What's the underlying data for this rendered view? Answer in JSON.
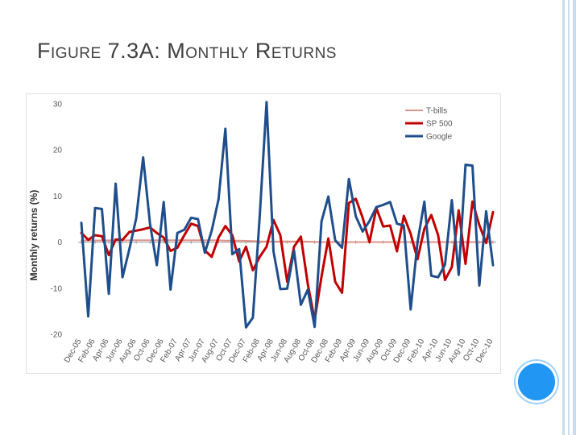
{
  "slide": {
    "title": "Figure 7.3A: Monthly Returns"
  },
  "colors": {
    "tbills": "#e0938a",
    "sp500": "#c00000",
    "google": "#1f4e8c",
    "deco": "#c9dcef",
    "button": "#2196f3"
  },
  "chart_data": {
    "type": "line",
    "title": "",
    "xlabel": "",
    "ylabel": "Monthly returns (%)",
    "ylim": [
      -20,
      30
    ],
    "yticks": [
      -20,
      -10,
      0,
      10,
      20,
      30
    ],
    "grid": false,
    "legend_position": "top-right",
    "tick_labels": [
      "Dec-05",
      "Feb-06",
      "Apr-06",
      "Jun-06",
      "Aug-06",
      "Oct-06",
      "Dec-06",
      "Feb-07",
      "Apr-07",
      "Jun-07",
      "Aug-07",
      "Oct-07",
      "Dec-07",
      "Feb-08",
      "Apr-08",
      "Jun-08",
      "Aug-08",
      "Oct-08",
      "Dec-08",
      "Feb-09",
      "Apr-09",
      "Jun-09",
      "Aug-09",
      "Oct-09",
      "Dec-09",
      "Feb-10",
      "Apr-10",
      "Jun-10",
      "Aug-10",
      "Oct-10",
      "Dec-10"
    ],
    "months": [
      "Dec-05",
      "Jan-06",
      "Feb-06",
      "Mar-06",
      "Apr-06",
      "May-06",
      "Jun-06",
      "Jul-06",
      "Aug-06",
      "Sep-06",
      "Oct-06",
      "Nov-06",
      "Dec-06",
      "Jan-07",
      "Feb-07",
      "Mar-07",
      "Apr-07",
      "May-07",
      "Jun-07",
      "Jul-07",
      "Aug-07",
      "Sep-07",
      "Oct-07",
      "Nov-07",
      "Dec-07",
      "Jan-08",
      "Feb-08",
      "Mar-08",
      "Apr-08",
      "May-08",
      "Jun-08",
      "Jul-08",
      "Aug-08",
      "Sep-08",
      "Oct-08",
      "Nov-08",
      "Dec-08",
      "Jan-09",
      "Feb-09",
      "Mar-09",
      "Apr-09",
      "May-09",
      "Jun-09",
      "Jul-09",
      "Aug-09",
      "Sep-09",
      "Oct-09",
      "Nov-09",
      "Dec-09",
      "Jan-10",
      "Feb-10",
      "Mar-10",
      "Apr-10",
      "May-10",
      "Jun-10",
      "Jul-10",
      "Aug-10",
      "Sep-10",
      "Oct-10",
      "Nov-10",
      "Dec-10"
    ],
    "series": [
      {
        "name": "T-bills",
        "color": "#e0938a",
        "width": 2,
        "values": [
          0.35,
          0.36,
          0.36,
          0.37,
          0.38,
          0.38,
          0.39,
          0.4,
          0.41,
          0.41,
          0.41,
          0.41,
          0.41,
          0.42,
          0.41,
          0.42,
          0.41,
          0.41,
          0.4,
          0.4,
          0.38,
          0.33,
          0.32,
          0.32,
          0.28,
          0.25,
          0.18,
          0.15,
          0.12,
          0.15,
          0.15,
          0.14,
          0.14,
          0.12,
          0.06,
          0.02,
          0.01,
          0.01,
          0.01,
          0.02,
          0.01,
          0.01,
          0.01,
          0.01,
          0.01,
          0.01,
          0.01,
          0.01,
          0.0,
          0.0,
          0.01,
          0.01,
          0.01,
          0.01,
          0.01,
          0.01,
          0.01,
          0.01,
          0.01,
          0.01,
          0.01
        ]
      },
      {
        "name": "SP 500",
        "color": "#c00000",
        "width": 3,
        "values": [
          2.0,
          0.5,
          1.5,
          1.3,
          -2.8,
          0.6,
          0.5,
          2.2,
          2.5,
          2.8,
          3.2,
          2.0,
          1.0,
          -1.9,
          -1.2,
          1.5,
          4.0,
          3.5,
          -1.8,
          -3.2,
          1.0,
          3.5,
          1.5,
          -4.2,
          -1.0,
          -6.1,
          -3.2,
          -1.0,
          4.8,
          1.5,
          -8.6,
          -1.0,
          1.2,
          -9.1,
          -16.9,
          -7.5,
          0.8,
          -8.6,
          -11.0,
          8.5,
          9.4,
          5.3,
          0.0,
          7.4,
          3.4,
          3.6,
          -2.0,
          5.7,
          1.8,
          -3.7,
          2.9,
          5.9,
          1.5,
          -8.2,
          -5.4,
          6.9,
          -4.7,
          8.8,
          3.7,
          -0.2,
          6.5
        ]
      },
      {
        "name": "Google",
        "color": "#1f4e8c",
        "width": 3,
        "values": [
          4.2,
          -16.1,
          7.4,
          7.2,
          -11.2,
          12.7,
          -7.6,
          -1.5,
          5.2,
          18.4,
          4.0,
          -5.0,
          8.7,
          -10.3,
          2.0,
          2.7,
          5.3,
          5.0,
          -2.3,
          2.5,
          9.3,
          24.6,
          -2.6,
          -1.5,
          -18.5,
          -16.4,
          5.6,
          30.4,
          -2.0,
          -10.2,
          -10.1,
          -1.8,
          -13.6,
          -10.3,
          -18.4,
          4.5,
          9.9,
          0.4,
          -1.2,
          13.7,
          5.6,
          2.3,
          4.6,
          7.6,
          8.1,
          8.7,
          4.0,
          3.6,
          -14.6,
          0.0,
          8.8,
          -7.3,
          -7.6,
          -4.9,
          9.1,
          -7.1,
          16.8,
          16.6,
          -9.4,
          6.7,
          -5.0
        ]
      }
    ]
  }
}
